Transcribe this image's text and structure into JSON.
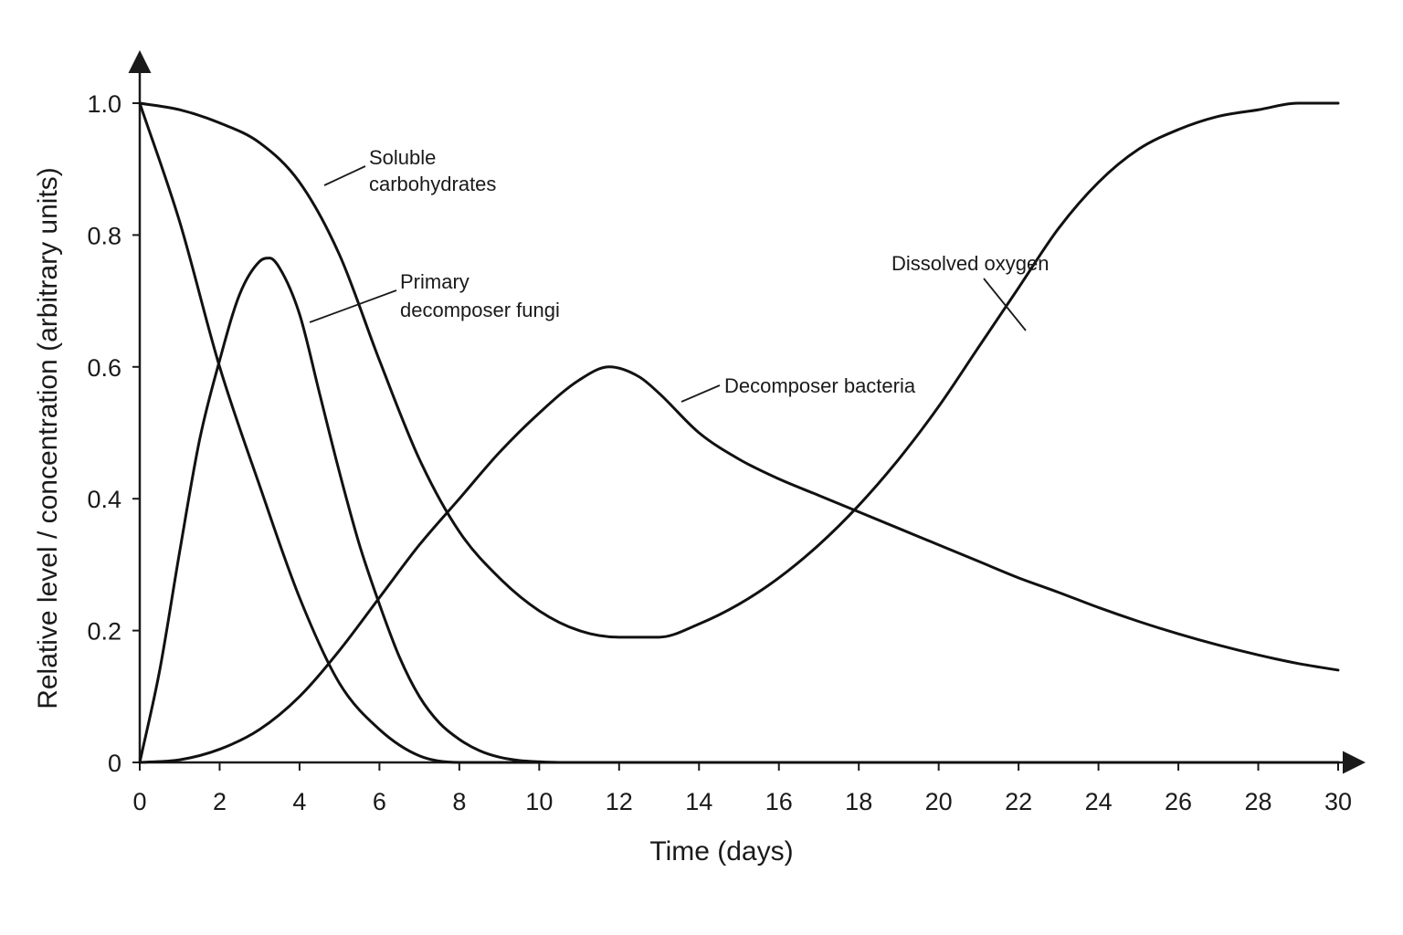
{
  "chart_data": {
    "type": "line",
    "xlabel": "Time (days)",
    "ylabel": "Relative level / concentration (arbitrary units)",
    "xlim": [
      0,
      30
    ],
    "ylim": [
      0,
      1.0
    ],
    "x_ticks": [
      0,
      2,
      4,
      6,
      8,
      10,
      12,
      14,
      16,
      18,
      20,
      22,
      24,
      26,
      28,
      30
    ],
    "y_ticks": [
      {
        "value": 0,
        "label": "0"
      },
      {
        "value": 0.2,
        "label": "0.2"
      },
      {
        "value": 0.4,
        "label": "0.4"
      },
      {
        "value": 0.6,
        "label": "0.6"
      },
      {
        "value": 0.8,
        "label": "0.8"
      },
      {
        "value": 1.0,
        "label": "1.0"
      }
    ],
    "grid": false,
    "series": [
      {
        "name": "Soluble carbohydrates",
        "label_lines": [
          "Soluble",
          "carbohydrates"
        ],
        "x": [
          0,
          1,
          2,
          3,
          4,
          5,
          6,
          7,
          8,
          9,
          10,
          11,
          12,
          13,
          14,
          15,
          16,
          17,
          18,
          19,
          20,
          21,
          22,
          23,
          24,
          25,
          26,
          27,
          28,
          29,
          30
        ],
        "y": [
          1.0,
          0.99,
          0.97,
          0.94,
          0.88,
          0.77,
          0.61,
          0.46,
          0.35,
          0.28,
          0.23,
          0.2,
          0.19,
          0.19,
          0.21,
          0.24,
          0.28,
          0.33,
          0.39,
          0.46,
          0.54,
          0.63,
          0.72,
          0.81,
          0.88,
          0.93,
          0.96,
          0.98,
          0.99,
          1.0,
          1.0
        ]
      },
      {
        "name": "Primary decomposer fungi",
        "label_lines": [
          "Primary",
          "decomposer fungi"
        ],
        "x": [
          0,
          0.5,
          1,
          1.5,
          2,
          2.5,
          3,
          3.25,
          3.5,
          4,
          4.5,
          5,
          5.5,
          6,
          6.5,
          7,
          7.5,
          8,
          8.5,
          9,
          9.5,
          10,
          10.5,
          11,
          30
        ],
        "y": [
          0,
          0.14,
          0.32,
          0.49,
          0.61,
          0.71,
          0.76,
          0.765,
          0.75,
          0.68,
          0.56,
          0.44,
          0.33,
          0.24,
          0.16,
          0.1,
          0.06,
          0.035,
          0.018,
          0.008,
          0.003,
          0.001,
          0,
          0,
          0
        ]
      },
      {
        "name": "Decomposer bacteria",
        "label_lines": [
          "Decomposer bacteria"
        ],
        "x": [
          0,
          1,
          2,
          3,
          4,
          5,
          6,
          7,
          8,
          9,
          10,
          11,
          11.75,
          12.5,
          13,
          14,
          15,
          16,
          17,
          18,
          19,
          20,
          21,
          22,
          23,
          24,
          25,
          26,
          27,
          28,
          29,
          30
        ],
        "y": [
          0,
          0.004,
          0.02,
          0.05,
          0.1,
          0.17,
          0.25,
          0.33,
          0.4,
          0.47,
          0.53,
          0.58,
          0.6,
          0.585,
          0.56,
          0.5,
          0.46,
          0.43,
          0.405,
          0.38,
          0.355,
          0.33,
          0.305,
          0.28,
          0.258,
          0.235,
          0.214,
          0.195,
          0.178,
          0.163,
          0.15,
          0.14
        ]
      },
      {
        "name": "Dissolved oxygen",
        "label_lines": [
          "Dissolved oxygen"
        ],
        "x": [
          0,
          1,
          2,
          3,
          4,
          5,
          6,
          7,
          8,
          30
        ],
        "y": [
          1.0,
          0.82,
          0.6,
          0.42,
          0.25,
          0.12,
          0.05,
          0.01,
          0,
          0
        ]
      }
    ]
  }
}
